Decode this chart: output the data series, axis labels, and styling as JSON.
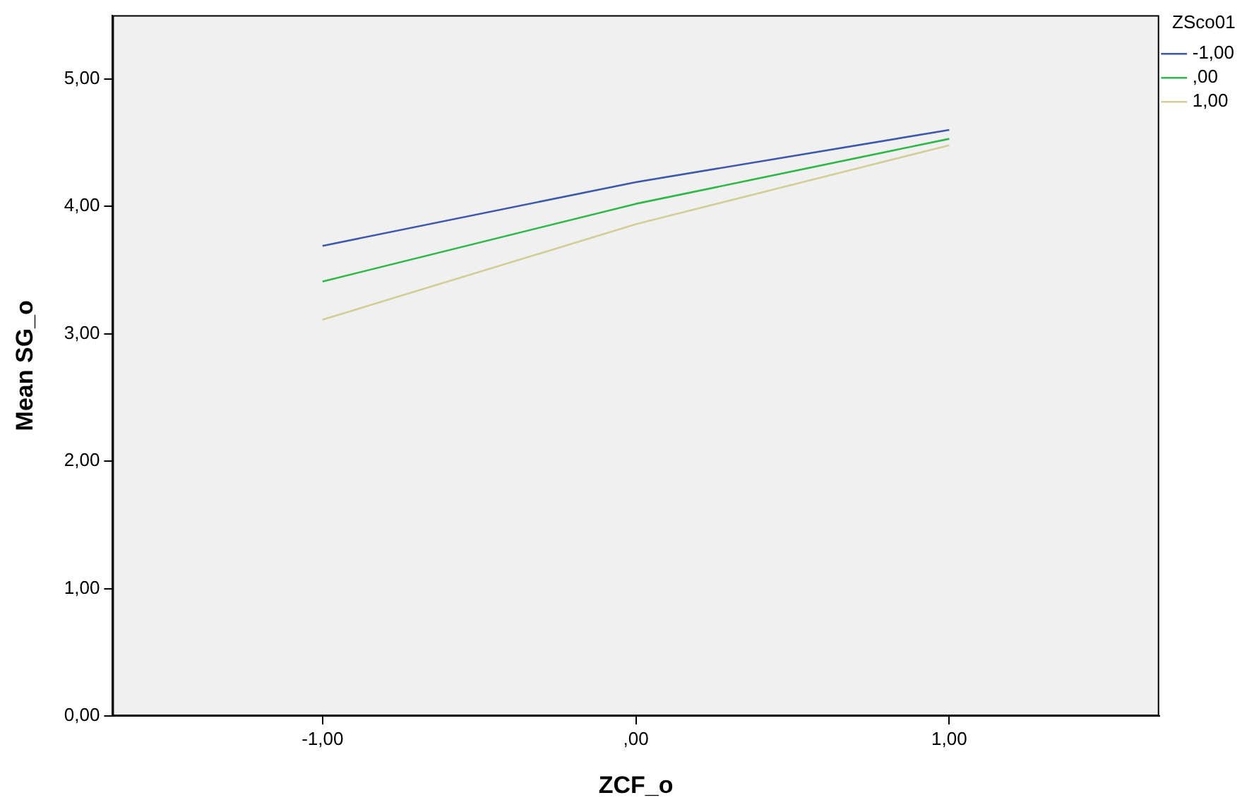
{
  "chart_data": {
    "type": "line",
    "xlabel": "ZCF_o",
    "ylabel": "Mean SG_o",
    "legend_title": "ZSco01",
    "legend": "top right",
    "grid": false,
    "marker": "none",
    "line_style": "solid",
    "x": [
      -1,
      0,
      1
    ],
    "xlim": [
      -1.67,
      1.67
    ],
    "xticks": [
      {
        "value": -1,
        "label": "-1,00"
      },
      {
        "value": 0,
        "label": ",00"
      },
      {
        "value": 1,
        "label": "1,00"
      }
    ],
    "ylim": [
      0,
      5.5
    ],
    "yticks": [
      {
        "value": 0,
        "label": "0,00"
      },
      {
        "value": 1,
        "label": "1,00"
      },
      {
        "value": 2,
        "label": "2,00"
      },
      {
        "value": 3,
        "label": "3,00"
      },
      {
        "value": 4,
        "label": "4,00"
      },
      {
        "value": 5,
        "label": "5,00"
      }
    ],
    "series": [
      {
        "name": "-1,00",
        "color": "#3e58ac",
        "values": [
          3.69,
          4.19,
          4.6
        ]
      },
      {
        "name": ",00",
        "color": "#2eb848",
        "values": [
          3.41,
          4.02,
          4.53
        ]
      },
      {
        "name": "1,00",
        "color": "#d3ce97",
        "values": [
          3.11,
          3.86,
          4.48
        ]
      }
    ]
  }
}
